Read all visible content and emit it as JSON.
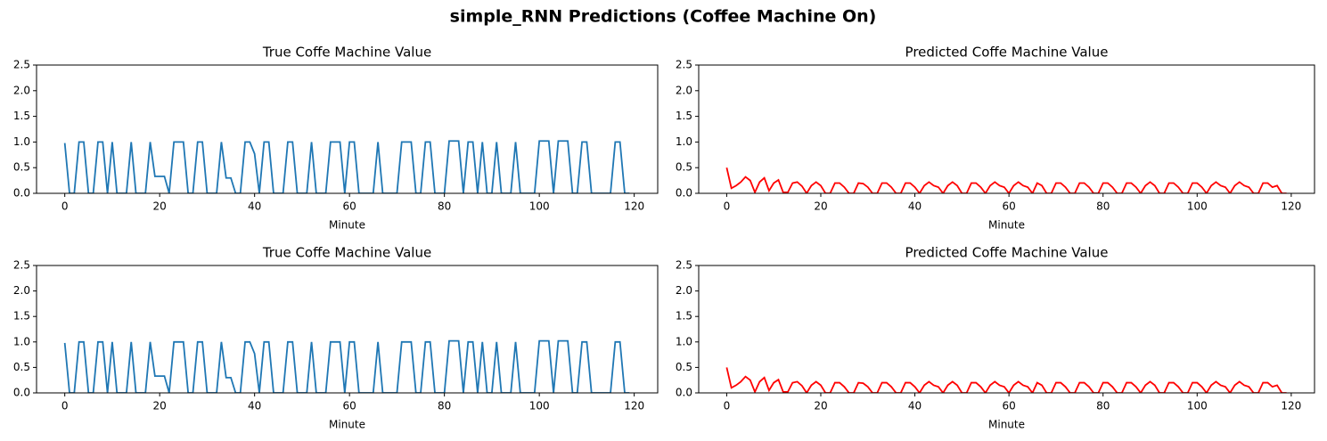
{
  "title": "simple_RNN Predictions (Coffee Machine On)",
  "chart_data": [
    {
      "type": "line",
      "title": "True Coffe Machine Value",
      "xlabel": "Minute",
      "color": "#1f77b4",
      "x": [
        0,
        1,
        2,
        3,
        4,
        5,
        6,
        7,
        8,
        9,
        10,
        11,
        12,
        13,
        14,
        15,
        16,
        17,
        18,
        19,
        20,
        21,
        22,
        23,
        24,
        25,
        26,
        27,
        28,
        29,
        30,
        31,
        32,
        33,
        34,
        35,
        36,
        37,
        38,
        39,
        40,
        41,
        42,
        43,
        44,
        45,
        46,
        47,
        48,
        49,
        50,
        51,
        52,
        53,
        54,
        55,
        56,
        57,
        58,
        59,
        60,
        61,
        62,
        63,
        64,
        65,
        66,
        67,
        68,
        69,
        70,
        71,
        72,
        73,
        74,
        75,
        76,
        77,
        78,
        79,
        80,
        81,
        82,
        83,
        84,
        85,
        86,
        87,
        88,
        89,
        90,
        91,
        92,
        93,
        94,
        95,
        96,
        97,
        98,
        99,
        100,
        101,
        102,
        103,
        104,
        105,
        106,
        107,
        108,
        109,
        110,
        111,
        112,
        113,
        114,
        115,
        116,
        117,
        118,
        119
      ],
      "values": [
        0.98,
        0,
        0,
        1,
        1,
        0,
        0,
        1,
        1,
        0,
        1,
        0,
        0,
        0,
        1,
        0,
        0,
        0,
        1,
        0.33,
        0.33,
        0.33,
        0,
        1,
        1,
        1,
        0,
        0,
        1,
        1,
        0,
        0,
        0,
        1,
        0.3,
        0.3,
        0,
        0,
        1,
        1,
        0.77,
        0,
        1,
        1,
        0,
        0,
        0,
        1,
        1,
        0,
        0,
        0,
        1,
        0,
        0,
        0,
        1,
        1,
        1,
        0,
        1,
        1,
        0,
        0,
        0,
        0,
        1,
        0,
        0,
        0,
        0,
        1,
        1,
        1,
        0,
        0,
        1,
        1,
        0,
        0,
        0,
        1.02,
        1.02,
        1.02,
        0,
        1,
        1,
        0,
        1,
        0,
        0,
        1,
        0,
        0,
        0,
        1,
        0,
        0,
        0,
        0,
        1.02,
        1.02,
        1.02,
        0,
        1.02,
        1.02,
        1.02,
        0,
        0,
        1,
        1,
        0,
        0,
        0,
        0,
        0,
        1,
        1,
        0,
        0
      ],
      "xlim": [
        -5.95,
        124.95
      ],
      "xticks": [
        0,
        20,
        40,
        60,
        80,
        100,
        120
      ],
      "ylim": [
        0,
        2.5
      ],
      "yticks": [
        {
          "value": 0,
          "label": "0.0"
        },
        0.5,
        {
          "value": 1,
          "label": "1.0"
        },
        1.5,
        {
          "value": 2,
          "label": "2.0"
        },
        2.5
      ]
    },
    {
      "type": "line",
      "title": "Predicted Coffe Machine Value",
      "xlabel": "Minute",
      "color": "#ff0000",
      "x": [
        0,
        1,
        2,
        3,
        4,
        5,
        6,
        7,
        8,
        9,
        10,
        11,
        12,
        13,
        14,
        15,
        16,
        17,
        18,
        19,
        20,
        21,
        22,
        23,
        24,
        25,
        26,
        27,
        28,
        29,
        30,
        31,
        32,
        33,
        34,
        35,
        36,
        37,
        38,
        39,
        40,
        41,
        42,
        43,
        44,
        45,
        46,
        47,
        48,
        49,
        50,
        51,
        52,
        53,
        54,
        55,
        56,
        57,
        58,
        59,
        60,
        61,
        62,
        63,
        64,
        65,
        66,
        67,
        68,
        69,
        70,
        71,
        72,
        73,
        74,
        75,
        76,
        77,
        78,
        79,
        80,
        81,
        82,
        83,
        84,
        85,
        86,
        87,
        88,
        89,
        90,
        91,
        92,
        93,
        94,
        95,
        96,
        97,
        98,
        99,
        100,
        101,
        102,
        103,
        104,
        105,
        106,
        107,
        108,
        109,
        110,
        111,
        112,
        113,
        114,
        115,
        116,
        117,
        118,
        119
      ],
      "values": [
        0.5,
        0.1,
        0.15,
        0.22,
        0.32,
        0.25,
        0.02,
        0.22,
        0.3,
        0.05,
        0.2,
        0.26,
        0.02,
        0.02,
        0.2,
        0.22,
        0.14,
        0,
        0.15,
        0.22,
        0.15,
        0,
        0,
        0.2,
        0.2,
        0.12,
        0,
        0,
        0.2,
        0.19,
        0.12,
        0,
        0,
        0.2,
        0.2,
        0.12,
        0,
        0,
        0.2,
        0.2,
        0.12,
        0,
        0.15,
        0.22,
        0.15,
        0.12,
        0,
        0.15,
        0.22,
        0.15,
        0,
        0,
        0.2,
        0.2,
        0.12,
        0,
        0.15,
        0.22,
        0.15,
        0.12,
        0,
        0.15,
        0.22,
        0.15,
        0.12,
        0,
        0.2,
        0.15,
        0,
        0,
        0.2,
        0.2,
        0.12,
        0,
        0,
        0.2,
        0.2,
        0.12,
        0,
        0,
        0.2,
        0.2,
        0.12,
        0,
        0,
        0.2,
        0.2,
        0.12,
        0,
        0.15,
        0.22,
        0.15,
        0,
        0,
        0.2,
        0.2,
        0.12,
        0,
        0,
        0.2,
        0.2,
        0.12,
        0,
        0.15,
        0.22,
        0.15,
        0.12,
        0,
        0.15,
        0.22,
        0.15,
        0.12,
        0,
        0,
        0.2,
        0.2,
        0.12,
        0.15,
        0,
        0
      ],
      "xlim": [
        -5.95,
        124.95
      ],
      "xticks": [
        0,
        20,
        40,
        60,
        80,
        100,
        120
      ],
      "ylim": [
        0,
        2.5
      ],
      "yticks": [
        {
          "value": 0,
          "label": "0.0"
        },
        0.5,
        {
          "value": 1,
          "label": "1.0"
        },
        1.5,
        {
          "value": 2,
          "label": "2.0"
        },
        2.5
      ]
    },
    {
      "type": "line",
      "title": "True Coffe Machine Value",
      "xlabel": "Minute",
      "color": "#1f77b4",
      "x": [
        0,
        1,
        2,
        3,
        4,
        5,
        6,
        7,
        8,
        9,
        10,
        11,
        12,
        13,
        14,
        15,
        16,
        17,
        18,
        19,
        20,
        21,
        22,
        23,
        24,
        25,
        26,
        27,
        28,
        29,
        30,
        31,
        32,
        33,
        34,
        35,
        36,
        37,
        38,
        39,
        40,
        41,
        42,
        43,
        44,
        45,
        46,
        47,
        48,
        49,
        50,
        51,
        52,
        53,
        54,
        55,
        56,
        57,
        58,
        59,
        60,
        61,
        62,
        63,
        64,
        65,
        66,
        67,
        68,
        69,
        70,
        71,
        72,
        73,
        74,
        75,
        76,
        77,
        78,
        79,
        80,
        81,
        82,
        83,
        84,
        85,
        86,
        87,
        88,
        89,
        90,
        91,
        92,
        93,
        94,
        95,
        96,
        97,
        98,
        99,
        100,
        101,
        102,
        103,
        104,
        105,
        106,
        107,
        108,
        109,
        110,
        111,
        112,
        113,
        114,
        115,
        116,
        117,
        118,
        119
      ],
      "values": [
        0.98,
        0,
        0,
        1,
        1,
        0,
        0,
        1,
        1,
        0,
        1,
        0,
        0,
        0,
        1,
        0,
        0,
        0,
        1,
        0.33,
        0.33,
        0.33,
        0,
        1,
        1,
        1,
        0,
        0,
        1,
        1,
        0,
        0,
        0,
        1,
        0.3,
        0.3,
        0,
        0,
        1,
        1,
        0.77,
        0,
        1,
        1,
        0,
        0,
        0,
        1,
        1,
        0,
        0,
        0,
        1,
        0,
        0,
        0,
        1,
        1,
        1,
        0,
        1,
        1,
        0,
        0,
        0,
        0,
        1,
        0,
        0,
        0,
        0,
        1,
        1,
        1,
        0,
        0,
        1,
        1,
        0,
        0,
        0,
        1.02,
        1.02,
        1.02,
        0,
        1,
        1,
        0,
        1,
        0,
        0,
        1,
        0,
        0,
        0,
        1,
        0,
        0,
        0,
        0,
        1.02,
        1.02,
        1.02,
        0,
        1.02,
        1.02,
        1.02,
        0,
        0,
        1,
        1,
        0,
        0,
        0,
        0,
        0,
        1,
        1,
        0,
        0
      ],
      "xlim": [
        -5.95,
        124.95
      ],
      "xticks": [
        0,
        20,
        40,
        60,
        80,
        100,
        120
      ],
      "ylim": [
        0,
        2.5
      ],
      "yticks": [
        {
          "value": 0,
          "label": "0.0"
        },
        0.5,
        {
          "value": 1,
          "label": "1.0"
        },
        1.5,
        {
          "value": 2,
          "label": "2.0"
        },
        2.5
      ]
    },
    {
      "type": "line",
      "title": "Predicted Coffe Machine Value",
      "xlabel": "Minute",
      "color": "#ff0000",
      "x": [
        0,
        1,
        2,
        3,
        4,
        5,
        6,
        7,
        8,
        9,
        10,
        11,
        12,
        13,
        14,
        15,
        16,
        17,
        18,
        19,
        20,
        21,
        22,
        23,
        24,
        25,
        26,
        27,
        28,
        29,
        30,
        31,
        32,
        33,
        34,
        35,
        36,
        37,
        38,
        39,
        40,
        41,
        42,
        43,
        44,
        45,
        46,
        47,
        48,
        49,
        50,
        51,
        52,
        53,
        54,
        55,
        56,
        57,
        58,
        59,
        60,
        61,
        62,
        63,
        64,
        65,
        66,
        67,
        68,
        69,
        70,
        71,
        72,
        73,
        74,
        75,
        76,
        77,
        78,
        79,
        80,
        81,
        82,
        83,
        84,
        85,
        86,
        87,
        88,
        89,
        90,
        91,
        92,
        93,
        94,
        95,
        96,
        97,
        98,
        99,
        100,
        101,
        102,
        103,
        104,
        105,
        106,
        107,
        108,
        109,
        110,
        111,
        112,
        113,
        114,
        115,
        116,
        117,
        118,
        119
      ],
      "values": [
        0.5,
        0.1,
        0.15,
        0.22,
        0.32,
        0.25,
        0.02,
        0.22,
        0.3,
        0.05,
        0.2,
        0.26,
        0.02,
        0.02,
        0.2,
        0.22,
        0.14,
        0,
        0.15,
        0.22,
        0.15,
        0,
        0,
        0.2,
        0.2,
        0.12,
        0,
        0,
        0.2,
        0.19,
        0.12,
        0,
        0,
        0.2,
        0.2,
        0.12,
        0,
        0,
        0.2,
        0.2,
        0.12,
        0,
        0.15,
        0.22,
        0.15,
        0.12,
        0,
        0.15,
        0.22,
        0.15,
        0,
        0,
        0.2,
        0.2,
        0.12,
        0,
        0.15,
        0.22,
        0.15,
        0.12,
        0,
        0.15,
        0.22,
        0.15,
        0.12,
        0,
        0.2,
        0.15,
        0,
        0,
        0.2,
        0.2,
        0.12,
        0,
        0,
        0.2,
        0.2,
        0.12,
        0,
        0,
        0.2,
        0.2,
        0.12,
        0,
        0,
        0.2,
        0.2,
        0.12,
        0,
        0.15,
        0.22,
        0.15,
        0,
        0,
        0.2,
        0.2,
        0.12,
        0,
        0,
        0.2,
        0.2,
        0.12,
        0,
        0.15,
        0.22,
        0.15,
        0.12,
        0,
        0.15,
        0.22,
        0.15,
        0.12,
        0,
        0,
        0.2,
        0.2,
        0.12,
        0.15,
        0,
        0
      ],
      "xlim": [
        -5.95,
        124.95
      ],
      "xticks": [
        0,
        20,
        40,
        60,
        80,
        100,
        120
      ],
      "ylim": [
        0,
        2.5
      ],
      "yticks": [
        {
          "value": 0,
          "label": "0.0"
        },
        0.5,
        {
          "value": 1,
          "label": "1.0"
        },
        1.5,
        {
          "value": 2,
          "label": "2.0"
        },
        2.5
      ]
    }
  ]
}
